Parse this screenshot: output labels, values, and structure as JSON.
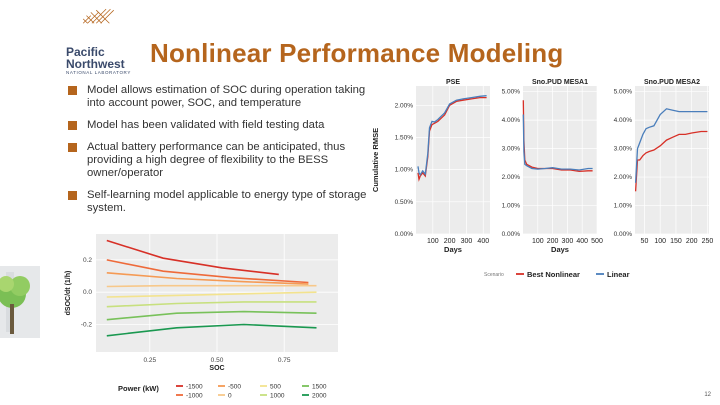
{
  "header": {
    "org_name_line1": "Pacific",
    "org_name_line2": "Northwest",
    "org_name_line3": "NATIONAL LABORATORY",
    "title": "Nonlinear Performance Modeling"
  },
  "bullets": [
    "Model allows estimation of SOC during operation taking into account power, SOC, and temperature",
    "Model has been validated with field testing data",
    "Actual battery performance can be anticipated, thus providing a high degree of flexibility to the BESS owner/operator",
    "Self-learning model applicable to energy type of storage system."
  ],
  "colors": {
    "accent": "#b5651d",
    "best_nonlinear": "#d73027",
    "linear": "#4a7ebb"
  },
  "page_number": "12",
  "chart_data": [
    {
      "type": "line",
      "title": "",
      "xlabel": "SOC",
      "ylabel": "dSOC/dt (1/h)",
      "x_ticks": [
        "0.25",
        "0.50",
        "0.75"
      ],
      "y_ticks": [
        "0.2",
        "0.0",
        "-0.2"
      ],
      "xlim": [
        0.05,
        0.95
      ],
      "ylim": [
        -0.37,
        0.36
      ],
      "legend_title": "Power (kW)",
      "legend_placement": "bottom",
      "series": [
        {
          "name": "-1500",
          "color": "#d73027",
          "x": [
            0.09,
            0.3,
            0.52,
            0.73
          ],
          "y": [
            0.32,
            0.21,
            0.15,
            0.11
          ]
        },
        {
          "name": "-1000",
          "color": "#ee6a3a",
          "x": [
            0.09,
            0.3,
            0.55,
            0.84
          ],
          "y": [
            0.2,
            0.13,
            0.09,
            0.06
          ]
        },
        {
          "name": "-500",
          "color": "#f59a54",
          "x": [
            0.09,
            0.35,
            0.6,
            0.84
          ],
          "y": [
            0.12,
            0.085,
            0.065,
            0.05
          ]
        },
        {
          "name": "0",
          "color": "#f7c88a",
          "x": [
            0.09,
            0.3,
            0.6,
            0.87
          ],
          "y": [
            0.035,
            0.04,
            0.04,
            0.04
          ]
        },
        {
          "name": "500",
          "color": "#f3e38e",
          "x": [
            0.09,
            0.35,
            0.6,
            0.87
          ],
          "y": [
            -0.03,
            -0.02,
            -0.01,
            0.0
          ]
        },
        {
          "name": "1000",
          "color": "#c7e07e",
          "x": [
            0.09,
            0.35,
            0.6,
            0.87
          ],
          "y": [
            -0.09,
            -0.07,
            -0.06,
            -0.06
          ]
        },
        {
          "name": "1500",
          "color": "#78c15a",
          "x": [
            0.09,
            0.35,
            0.6,
            0.87
          ],
          "y": [
            -0.17,
            -0.13,
            -0.12,
            -0.13
          ]
        },
        {
          "name": "2000",
          "color": "#1a9850",
          "x": [
            0.09,
            0.35,
            0.6,
            0.87
          ],
          "y": [
            -0.27,
            -0.22,
            -0.2,
            -0.22
          ]
        }
      ]
    },
    {
      "type": "line",
      "title": "PSE",
      "xlabel": "Days",
      "ylabel": "Cumulative RMSE",
      "x_ticks": [
        "100",
        "200",
        "300",
        "400"
      ],
      "y_ticks": [
        "0.00%",
        "0.50%",
        "1.00%",
        "1.50%",
        "2.00%"
      ],
      "xlim": [
        0,
        440
      ],
      "ylim": [
        0.0,
        2.3
      ],
      "series": [
        {
          "name": "Best Nonlinear",
          "color": "#d73027",
          "x": [
            12,
            18,
            25,
            40,
            55,
            70,
            80,
            95,
            110,
            130,
            150,
            170,
            200,
            240,
            280,
            330,
            380,
            420
          ],
          "y": [
            0.95,
            0.85,
            0.9,
            0.95,
            0.9,
            1.2,
            1.6,
            1.7,
            1.72,
            1.75,
            1.8,
            1.85,
            2.0,
            2.06,
            2.08,
            2.1,
            2.12,
            2.12
          ]
        },
        {
          "name": "Linear",
          "color": "#4a7ebb",
          "x": [
            12,
            18,
            25,
            40,
            55,
            70,
            80,
            95,
            110,
            130,
            150,
            170,
            200,
            240,
            280,
            330,
            380,
            420
          ],
          "y": [
            1.05,
            0.95,
            0.92,
            0.98,
            0.93,
            1.25,
            1.65,
            1.75,
            1.74,
            1.78,
            1.83,
            1.88,
            2.02,
            2.08,
            2.1,
            2.12,
            2.14,
            2.15
          ]
        }
      ]
    },
    {
      "type": "line",
      "title": "Sno.PUD MESA1",
      "xlabel": "Days",
      "ylabel": "",
      "x_ticks": [
        "100",
        "200",
        "300",
        "400",
        "500"
      ],
      "y_ticks": [
        "0.00%",
        "1.00%",
        "2.00%",
        "3.00%",
        "4.00%",
        "5.00%"
      ],
      "xlim": [
        0,
        500
      ],
      "ylim": [
        0.0,
        5.2
      ],
      "series": [
        {
          "name": "Best Nonlinear",
          "color": "#d73027",
          "x": [
            2,
            6,
            12,
            25,
            60,
            100,
            150,
            200,
            260,
            320,
            380,
            440,
            470
          ],
          "y": [
            4.7,
            3.3,
            2.6,
            2.45,
            2.35,
            2.3,
            2.3,
            2.3,
            2.25,
            2.25,
            2.2,
            2.22,
            2.22
          ]
        },
        {
          "name": "Linear",
          "color": "#4a7ebb",
          "x": [
            2,
            6,
            12,
            25,
            60,
            100,
            150,
            200,
            260,
            320,
            380,
            440,
            470
          ],
          "y": [
            4.2,
            2.9,
            2.45,
            2.4,
            2.3,
            2.28,
            2.3,
            2.33,
            2.28,
            2.28,
            2.25,
            2.3,
            2.3
          ]
        }
      ]
    },
    {
      "type": "line",
      "title": "Sno.PUD MESA2",
      "xlabel": "",
      "ylabel": "",
      "x_ticks": [
        "50",
        "100",
        "150",
        "200",
        "250"
      ],
      "y_ticks": [
        "0.00%",
        "1.00%",
        "2.00%",
        "3.00%",
        "4.00%",
        "5.00%"
      ],
      "xlim": [
        20,
        255
      ],
      "ylim": [
        0.0,
        5.2
      ],
      "series": [
        {
          "name": "Best Nonlinear",
          "color": "#d73027",
          "x": [
            22,
            28,
            35,
            45,
            55,
            65,
            80,
            100,
            120,
            140,
            160,
            180,
            200,
            230,
            250
          ],
          "y": [
            1.5,
            2.6,
            2.6,
            2.75,
            2.85,
            2.9,
            2.95,
            3.1,
            3.3,
            3.4,
            3.5,
            3.5,
            3.55,
            3.6,
            3.6
          ]
        },
        {
          "name": "Linear",
          "color": "#4a7ebb",
          "x": [
            22,
            28,
            35,
            45,
            55,
            65,
            80,
            100,
            120,
            140,
            160,
            180,
            200,
            230,
            250
          ],
          "y": [
            1.8,
            3.0,
            3.2,
            3.5,
            3.7,
            3.75,
            3.8,
            4.2,
            4.4,
            4.35,
            4.3,
            4.3,
            4.3,
            4.3,
            4.3
          ]
        }
      ]
    }
  ],
  "rmse_legend": {
    "label": "Scenario",
    "items": [
      "Best Nonlinear",
      "Linear"
    ]
  }
}
